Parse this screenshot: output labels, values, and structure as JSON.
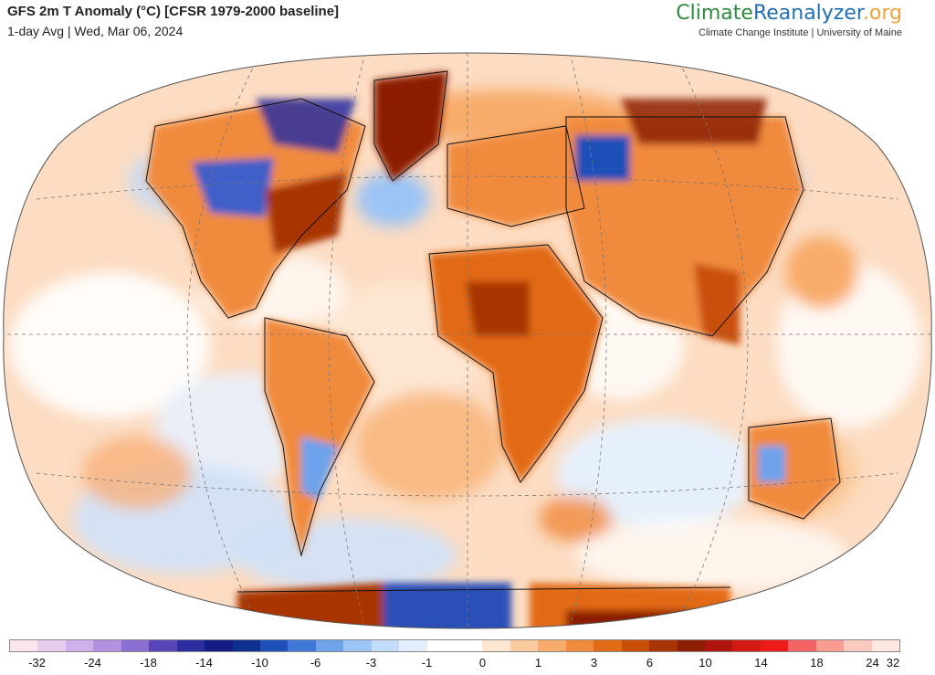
{
  "header": {
    "title": "GFS 2m T Anomaly (°C) [CFSR 1979-2000 baseline]",
    "subtitle": "1-day Avg | Wed, Mar 06, 2024"
  },
  "brand": {
    "part1": "Climate",
    "part2": "Reanalyzer",
    "part3": ".org",
    "tagline": "Climate Change Institute | University of Maine",
    "colors": {
      "climate": "#2e8b3f",
      "reanalyzer": "#1f6fb2",
      "org": "#f2a13a"
    }
  },
  "legend": {
    "colors": [
      "#fbe6ef",
      "#e7cdee",
      "#cfb0ea",
      "#b390e0",
      "#8b6ed2",
      "#5a45b8",
      "#2c2ea0",
      "#121c84",
      "#0d2f8e",
      "#1f4fb8",
      "#3f78d6",
      "#6ea2ea",
      "#9cc4f5",
      "#c3dcfa",
      "#e2eefc",
      "#ffffff",
      "#ffffff",
      "#fde6d2",
      "#fbcb9e",
      "#f8ac6b",
      "#f08a3c",
      "#e26b18",
      "#c94f08",
      "#a83506",
      "#8c1f04",
      "#b0140e",
      "#d31a12",
      "#ee1b1b",
      "#f56464",
      "#f89c91",
      "#fbc9bd",
      "#fde8e0"
    ],
    "tick_labels": [
      "-32",
      "-24",
      "-18",
      "-14",
      "-10",
      "-6",
      "-3",
      "-1",
      "0",
      "1",
      "3",
      "6",
      "10",
      "14",
      "18",
      "24",
      "32"
    ]
  },
  "map": {
    "projection": "Winkel tripel (world, 2m temperature anomaly)",
    "ocean_base_color": "#fcdcc2",
    "graticule": "dashed"
  }
}
